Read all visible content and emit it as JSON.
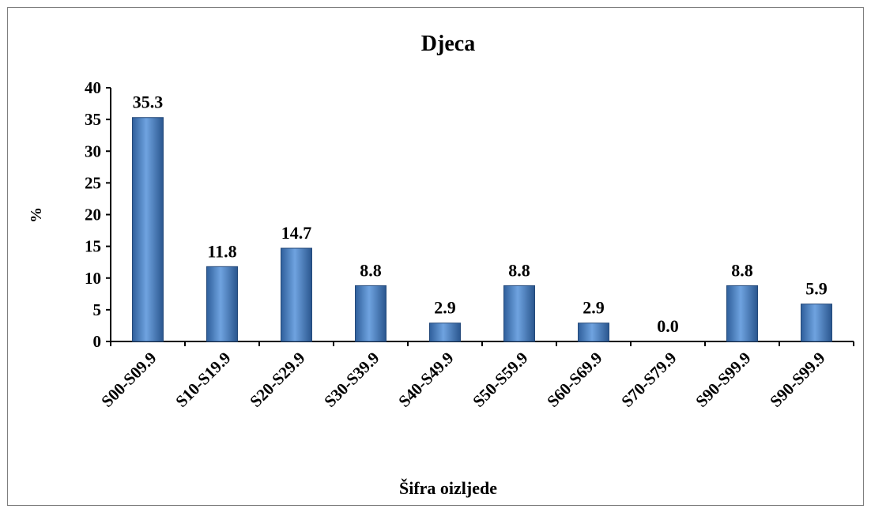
{
  "chart_data": {
    "type": "bar",
    "title": "Djeca",
    "xlabel": "Šifra oizljede",
    "ylabel": "%",
    "ylim": [
      0,
      40
    ],
    "yticks": [
      0,
      5,
      10,
      15,
      20,
      25,
      30,
      35,
      40
    ],
    "categories": [
      "S00-S09.9",
      "S10-S19.9",
      "S20-S29.9",
      "S30-S39.9",
      "S40-S49.9",
      "S50-S59.9",
      "S60-S69.9",
      "S70-S79.9",
      "S90-S99.9",
      "S90-S99.9"
    ],
    "values": [
      35.3,
      11.8,
      14.7,
      8.8,
      2.9,
      8.8,
      2.9,
      0.0,
      8.8,
      5.9
    ],
    "data_labels": [
      "35.3",
      "11.8",
      "14.7",
      "8.8",
      "2.9",
      "8.8",
      "2.9",
      "0.0",
      "8.8",
      "5.9"
    ],
    "grid": false,
    "legend": "none",
    "bar_color": "#4a84c4"
  }
}
